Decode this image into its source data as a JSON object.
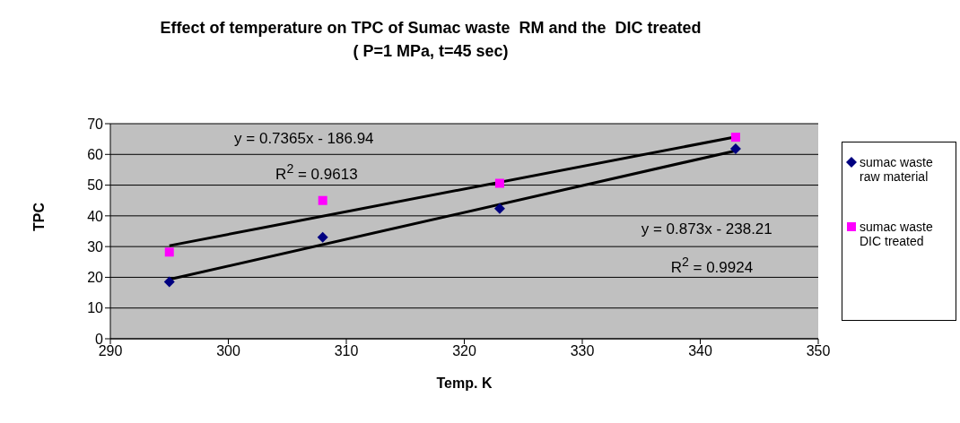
{
  "chart_data": {
    "type": "scatter",
    "title": "Effect of temperature on TPC of Sumac waste  RM and the  DIC treated",
    "subtitle": "( P=1 MPa, t=45 sec)",
    "xlabel": "Temp. K",
    "ylabel": "TPC",
    "series": [
      {
        "name": "sumac waste raw material",
        "color": "#000080",
        "marker": "diamond",
        "x": [
          295,
          308,
          323,
          343
        ],
        "values": [
          18.5,
          33,
          42.4,
          61.8
        ]
      },
      {
        "name": "sumac waste DIC treated",
        "color": "#ff00ff",
        "marker": "square",
        "x": [
          295,
          308,
          323,
          343
        ],
        "values": [
          28.2,
          45,
          50.6,
          65.6
        ]
      },
      {
        "type": "line",
        "color": "#000000",
        "marker": "none",
        "x": [
          295,
          343
        ],
        "values": [
          30.3,
          65.7
        ]
      },
      {
        "type": "line",
        "color": "#000000",
        "marker": "none",
        "x": [
          295,
          343
        ],
        "values": [
          19.3,
          61.2
        ]
      }
    ],
    "annotations": [
      "y = 0.7365x - 186.94",
      "R$^{2}$ = 0.9613",
      "y = 0.873x - 238.21",
      "R$^{2}$ = 0.9924"
    ],
    "xlim": [
      290,
      350
    ],
    "xticks": [
      290,
      300,
      310,
      320,
      330,
      340,
      350
    ],
    "ylim": [
      0,
      70
    ],
    "yticks": [
      0,
      10,
      20,
      30,
      40,
      50,
      60,
      70
    ],
    "grid": "y",
    "legend": "right",
    "line_style": "solid"
  }
}
